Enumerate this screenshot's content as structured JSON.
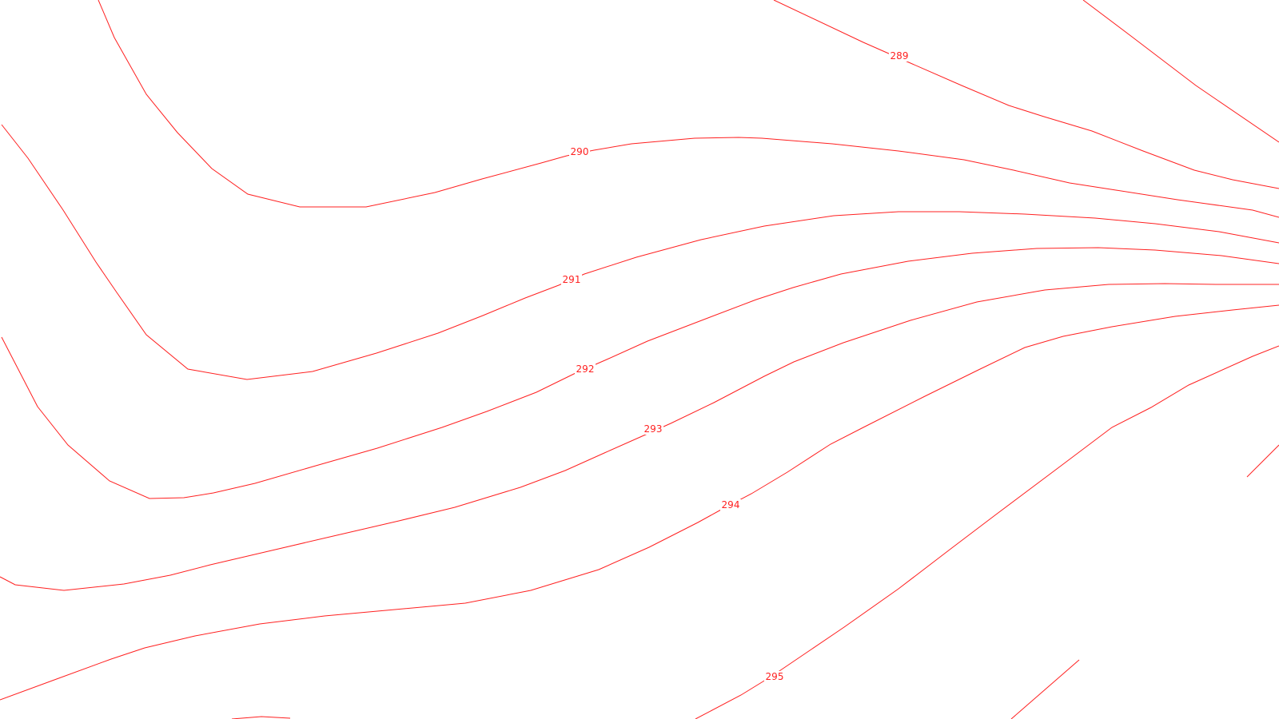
{
  "map": {
    "type": "contour-map",
    "line_color": "#ff2020",
    "background_color": "#ffffff"
  },
  "contour_labels": {
    "c289": "289",
    "c290": "290",
    "c291": "291",
    "c292": "292",
    "c293": "293",
    "c294": "294",
    "c295": "295"
  }
}
